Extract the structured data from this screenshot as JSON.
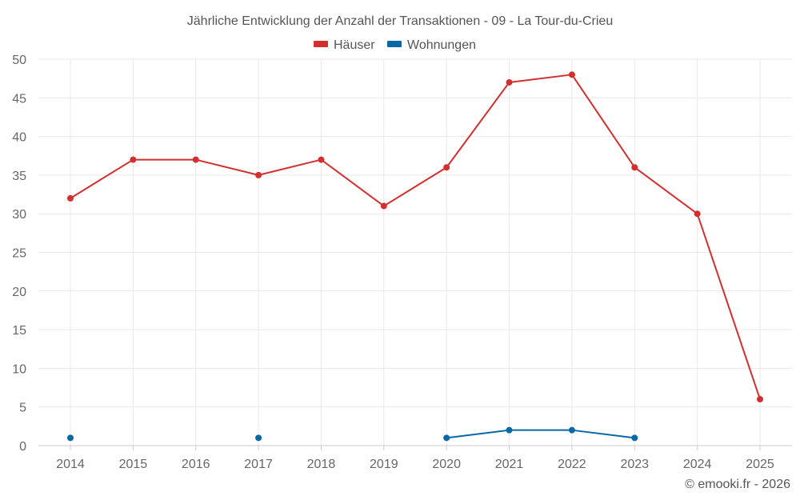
{
  "chart_data": {
    "type": "line",
    "title": "Jährliche Entwicklung der Anzahl der Transaktionen - 09 - La Tour-du-Crieu",
    "categories": [
      "2014",
      "2015",
      "2016",
      "2017",
      "2018",
      "2019",
      "2020",
      "2021",
      "2022",
      "2023",
      "2024",
      "2025"
    ],
    "series": [
      {
        "name": "Häuser",
        "color": "#d32f2f",
        "values": [
          32,
          37,
          37,
          35,
          37,
          31,
          36,
          47,
          48,
          36,
          30,
          6
        ]
      },
      {
        "name": "Wohnungen",
        "color": "#0868a6",
        "values": [
          1,
          null,
          null,
          1,
          null,
          null,
          1,
          2,
          2,
          1,
          null,
          null
        ]
      }
    ],
    "ylim": [
      0,
      50
    ],
    "yticks": [
      "0",
      "5",
      "10",
      "15",
      "20",
      "25",
      "30",
      "35",
      "40",
      "45",
      "50"
    ],
    "grid": true,
    "legend": "top-center",
    "xlabel": "",
    "ylabel": ""
  },
  "credit": "© emooki.fr - 2026"
}
